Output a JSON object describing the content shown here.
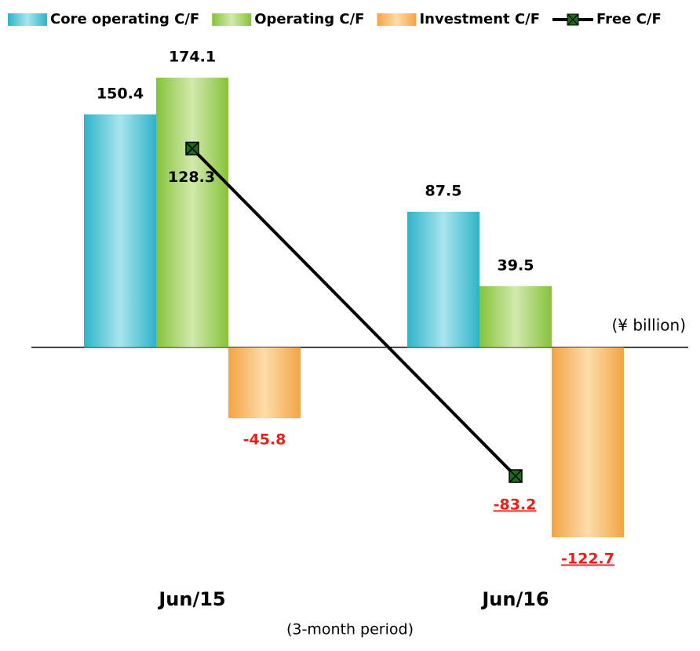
{
  "chart_data": {
    "type": "bar",
    "categories": [
      "Jun/15",
      "Jun/16"
    ],
    "series": [
      {
        "name": "Core operating C/F",
        "color": "#3bb8cc",
        "values": [
          150.4,
          87.5
        ]
      },
      {
        "name": "Operating C/F",
        "color": "#8cc63f",
        "values": [
          174.1,
          39.5
        ]
      },
      {
        "name": "Investment C/F",
        "color": "#f5a94a",
        "values": [
          -45.8,
          -122.7
        ]
      },
      {
        "name": "Free C/F",
        "type": "line",
        "color": "#000000",
        "marker_color": "#1e6b1e",
        "values": [
          128.3,
          -83.2
        ]
      }
    ],
    "unit_label": "(¥ billion)",
    "x_label": "(3-month period)",
    "legend": "top"
  }
}
